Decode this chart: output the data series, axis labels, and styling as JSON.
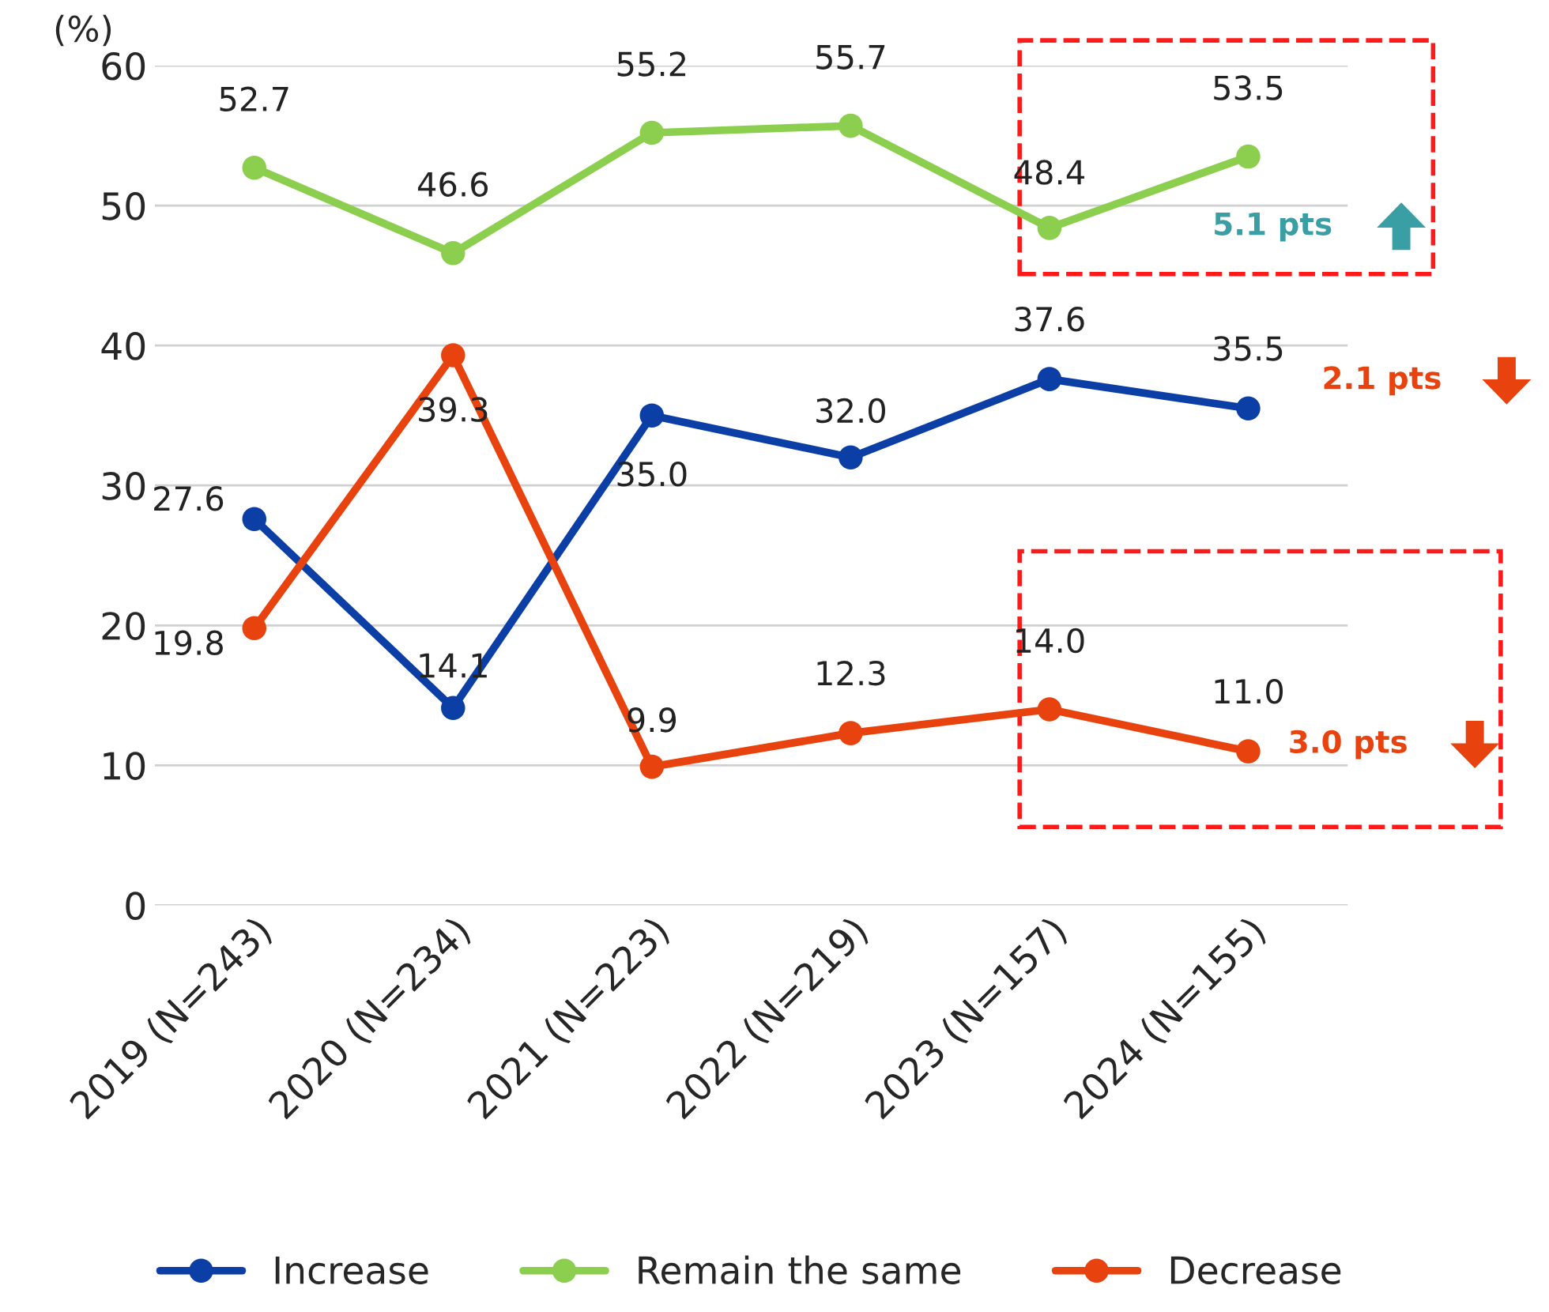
{
  "chart_data": {
    "type": "line",
    "ylabel": "(%)",
    "categories": [
      "2019 (N=243)",
      "2020 (N=234)",
      "2021 (N=223)",
      "2022 (N=219)",
      "2023 (N=157)",
      "2024 (N=155)"
    ],
    "series": [
      {
        "name": "Increase",
        "color": "#0b3fa6",
        "values": [
          27.6,
          14.1,
          35.0,
          32.0,
          37.6,
          35.5
        ],
        "value_labels": [
          "27.6",
          "14.1",
          "35.0",
          "32.0",
          "37.6",
          "35.5"
        ]
      },
      {
        "name": "Remain the same",
        "color": "#8ccf4f",
        "values": [
          52.7,
          46.6,
          55.2,
          55.7,
          48.4,
          53.5
        ],
        "value_labels": [
          "52.7",
          "46.6",
          "55.2",
          "55.7",
          "48.4",
          "53.5"
        ]
      },
      {
        "name": "Decrease",
        "color": "#e8430f",
        "values": [
          19.8,
          39.3,
          9.9,
          12.3,
          14.0,
          11.0
        ],
        "value_labels": [
          "19.8",
          "39.3",
          "9.9",
          "12.3",
          "14.0",
          "11.0"
        ]
      }
    ],
    "ylim": [
      0,
      60
    ],
    "yticks": [
      0,
      10,
      20,
      30,
      40,
      50,
      60
    ],
    "grid": "y",
    "legend": "bottom",
    "marker": "circle",
    "line_style": "solid",
    "annotations": [
      "5.1 pts",
      "2.1 pts",
      "3.0 pts"
    ]
  }
}
